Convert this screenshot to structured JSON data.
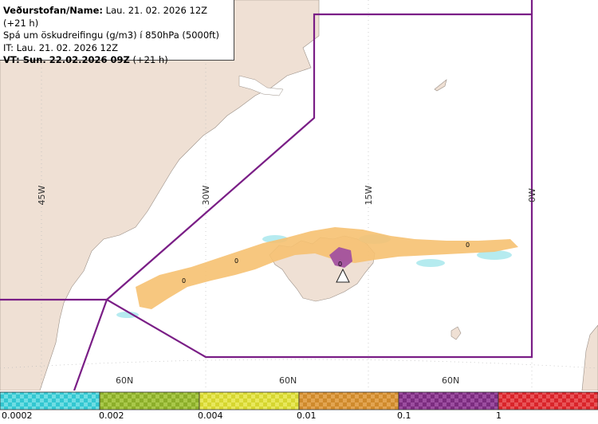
{
  "header": {
    "line1_label": "Veðurstofan/Name:",
    "line1_value": "Lau. 21. 02. 2026 12Z (+21 h)",
    "line2": "Spá um öskudreifingu (g/m3) í 850hPa (5000ft)",
    "line3": "IT: Lau. 21. 02. 2026 12Z",
    "line4_label": "VT: Sun. 22.02.2026 09Z",
    "line4_value": "(+21 h)"
  },
  "map": {
    "longitude_labels": [
      "45W",
      "30W",
      "15W",
      "0W"
    ],
    "latitude_labels": [
      "60N",
      "60N",
      "60N"
    ],
    "contour_labels": [
      "0",
      "0",
      "0",
      "0"
    ],
    "colors": {
      "land": "#efe0d4",
      "sea": "#ffffff",
      "boundary": "#7a1e86",
      "grid": "#bbbbbb"
    }
  },
  "legend": {
    "values": [
      "0.0002",
      "0.002",
      "0.004",
      "0.01",
      "0.1",
      "1"
    ],
    "colors": [
      "#33c7d1",
      "#8cae2a",
      "#d6d630",
      "#cf8a2c",
      "#7b2c7f",
      "#d9242a"
    ]
  }
}
